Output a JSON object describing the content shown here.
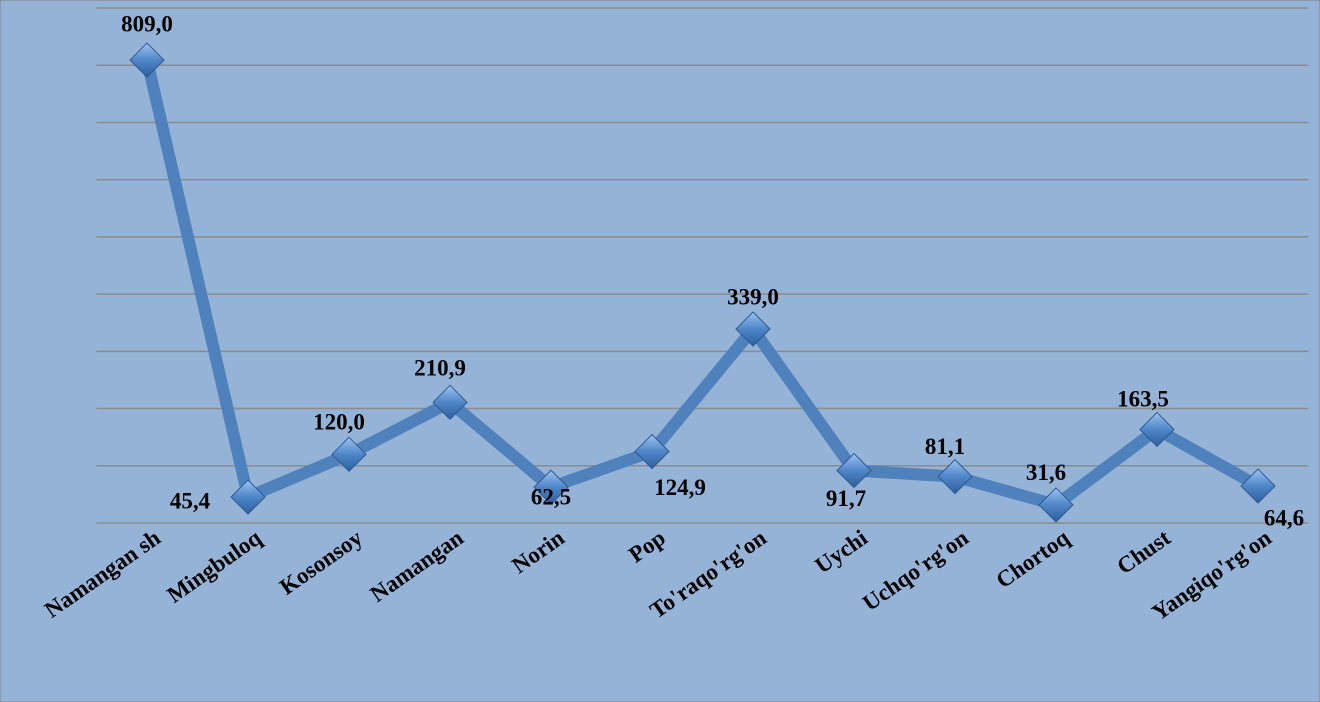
{
  "chart_data": {
    "type": "line",
    "categories": [
      "Namangan sh",
      "Mingbuloq",
      "Kosonsoy",
      "Namangan",
      "Norin",
      "Pop",
      "To'raqo'rg'on",
      "Uychi",
      "Uchqo'rg'on",
      "Chortoq",
      "Chust",
      "Yangiqo'rg'on"
    ],
    "series": [
      {
        "color": "#4f81bd",
        "values": [
          809.0,
          45.4,
          120.0,
          210.9,
          62.5,
          124.9,
          339.0,
          91.7,
          81.1,
          31.6,
          163.5,
          64.6
        ],
        "value_labels": [
          "809,0",
          "45,4",
          "120,0",
          "210,9",
          "62,5",
          "124,9",
          "339,0",
          "91,7",
          "81,1",
          "31,6",
          "163,5",
          "64,6"
        ]
      }
    ],
    "ylim": [
      0,
      900
    ],
    "yticks": [
      0,
      100,
      200,
      300,
      400,
      500,
      600,
      700,
      800,
      900
    ],
    "grid": true
  }
}
